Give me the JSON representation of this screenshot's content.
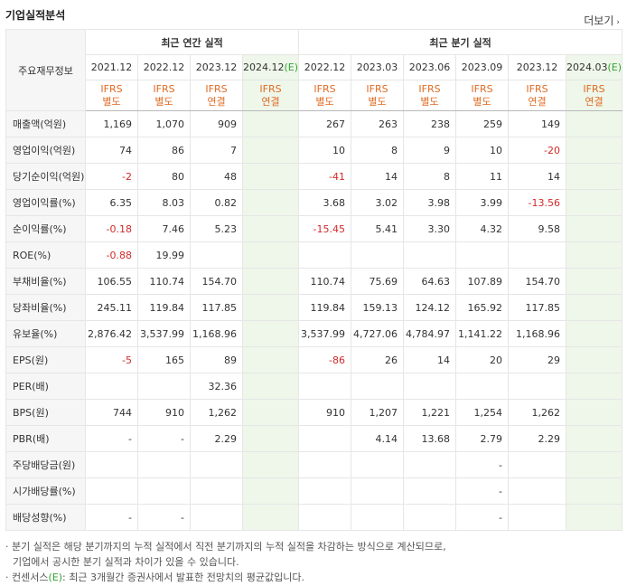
{
  "header": {
    "title": "기업실적분석",
    "more_label": "더보기",
    "more_arrow": "›"
  },
  "table": {
    "label_header": "주요재무정보",
    "groups": {
      "annual": "최근 연간 실적",
      "quarterly": "최근 분기 실적"
    },
    "periods": [
      {
        "label": "2021.12",
        "est": "",
        "basis1": "IFRS",
        "basis2": "별도"
      },
      {
        "label": "2022.12",
        "est": "",
        "basis1": "IFRS",
        "basis2": "별도"
      },
      {
        "label": "2023.12",
        "est": "",
        "basis1": "IFRS",
        "basis2": "연결"
      },
      {
        "label": "2024.12",
        "est": "(E)",
        "basis1": "IFRS",
        "basis2": "연결"
      },
      {
        "label": "2022.12",
        "est": "",
        "basis1": "IFRS",
        "basis2": "별도"
      },
      {
        "label": "2023.03",
        "est": "",
        "basis1": "IFRS",
        "basis2": "별도"
      },
      {
        "label": "2023.06",
        "est": "",
        "basis1": "IFRS",
        "basis2": "별도"
      },
      {
        "label": "2023.09",
        "est": "",
        "basis1": "IFRS",
        "basis2": "별도"
      },
      {
        "label": "2023.12",
        "est": "",
        "basis1": "IFRS",
        "basis2": "연결"
      },
      {
        "label": "2024.03",
        "est": "(E)",
        "basis1": "IFRS",
        "basis2": "연결"
      }
    ],
    "rows": [
      {
        "label": "매출액(억원)",
        "values": [
          "1,169",
          "1,070",
          "909",
          "",
          "267",
          "263",
          "238",
          "259",
          "149",
          ""
        ]
      },
      {
        "label": "영업이익(억원)",
        "values": [
          "74",
          "86",
          "7",
          "",
          "10",
          "8",
          "9",
          "10",
          "-20",
          ""
        ]
      },
      {
        "label": "당기순이익(억원)",
        "values": [
          "-2",
          "80",
          "48",
          "",
          "-41",
          "14",
          "8",
          "11",
          "14",
          ""
        ]
      },
      {
        "label": "영업이익률(%)",
        "values": [
          "6.35",
          "8.03",
          "0.82",
          "",
          "3.68",
          "3.02",
          "3.98",
          "3.99",
          "-13.56",
          ""
        ]
      },
      {
        "label": "순이익률(%)",
        "values": [
          "-0.18",
          "7.46",
          "5.23",
          "",
          "-15.45",
          "5.41",
          "3.30",
          "4.32",
          "9.58",
          ""
        ]
      },
      {
        "label": "ROE(%)",
        "values": [
          "-0.88",
          "19.99",
          "",
          "",
          "",
          "",
          "",
          "",
          "",
          ""
        ]
      },
      {
        "label": "부채비율(%)",
        "values": [
          "106.55",
          "110.74",
          "154.70",
          "",
          "110.74",
          "75.69",
          "64.63",
          "107.89",
          "154.70",
          ""
        ]
      },
      {
        "label": "당좌비율(%)",
        "values": [
          "245.11",
          "119.84",
          "117.85",
          "",
          "119.84",
          "159.13",
          "124.12",
          "165.92",
          "117.85",
          ""
        ]
      },
      {
        "label": "유보율(%)",
        "values": [
          "2,876.42",
          "3,537.99",
          "1,168.96",
          "",
          "3,537.99",
          "4,727.06",
          "4,784.97",
          "1,141.22",
          "1,168.96",
          ""
        ]
      },
      {
        "label": "EPS(원)",
        "values": [
          "-5",
          "165",
          "89",
          "",
          "-86",
          "26",
          "14",
          "20",
          "29",
          ""
        ]
      },
      {
        "label": "PER(배)",
        "values": [
          "",
          "",
          "32.36",
          "",
          "",
          "",
          "",
          "",
          "",
          ""
        ]
      },
      {
        "label": "BPS(원)",
        "values": [
          "744",
          "910",
          "1,262",
          "",
          "910",
          "1,207",
          "1,221",
          "1,254",
          "1,262",
          ""
        ]
      },
      {
        "label": "PBR(배)",
        "values": [
          "-",
          "-",
          "2.29",
          "",
          "",
          "4.14",
          "13.68",
          "2.79",
          "2.29",
          ""
        ]
      },
      {
        "label": "주당배당금(원)",
        "values": [
          "",
          "",
          "",
          "",
          "",
          "",
          "",
          "-",
          "",
          ""
        ]
      },
      {
        "label": "시가배당률(%)",
        "values": [
          "",
          "",
          "",
          "",
          "",
          "",
          "",
          "-",
          "",
          ""
        ]
      },
      {
        "label": "배당성향(%)",
        "values": [
          "-",
          "-",
          "",
          "",
          "",
          "",
          "",
          "-",
          "",
          ""
        ]
      }
    ]
  },
  "notes": {
    "line1": "· 분기 실적은 해당 분기까지의 누적 실적에서 직전 분기까지의 누적 실적을 차감하는 방식으로 계산되므로,",
    "line2": "기업에서 공시한 분기 실적과 차이가 있을 수 있습니다.",
    "line3_prefix": "· 컨센서스",
    "line3_est": "(E)",
    "line3_suffix": ": 최근 3개월간 증권사에서 발표한 전망치의 평균값입니다."
  }
}
